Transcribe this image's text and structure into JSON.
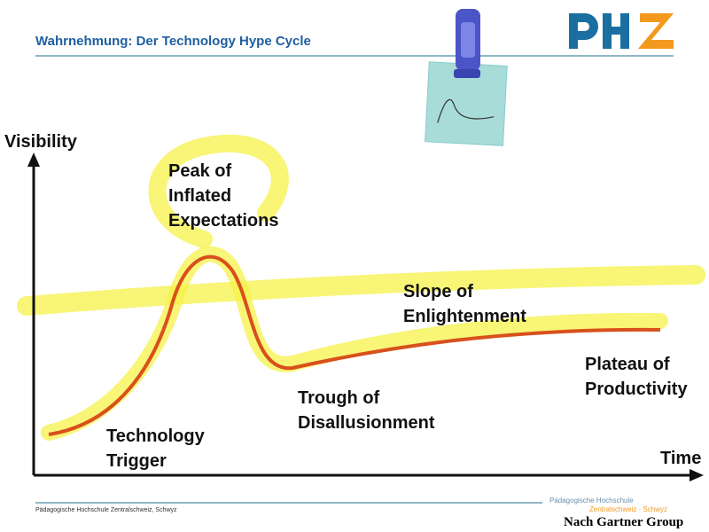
{
  "header": {
    "title": "Wahrnehmung: Der Technology Hype Cycle"
  },
  "diagram": {
    "y_axis_label": "Visibility",
    "x_axis_label": "Time",
    "phases": [
      {
        "lines": [
          "Technology",
          "Trigger"
        ]
      },
      {
        "lines": [
          "Peak of",
          "Inflated",
          "Expectations"
        ]
      },
      {
        "lines": [
          "Trough of",
          "Disallusionment"
        ]
      },
      {
        "lines": [
          "Slope of",
          "Enlightenment"
        ]
      },
      {
        "lines": [
          "Plateau of",
          "Productivity"
        ]
      }
    ]
  },
  "footer": {
    "left": "Pädagogische Hochschule Zentralschweiz, Schwyz",
    "brand_line1": "Pädagogische Hochschule",
    "brand_line2": "Zentralschweiz · Schwyz",
    "source": "Nach Gartner Group"
  }
}
